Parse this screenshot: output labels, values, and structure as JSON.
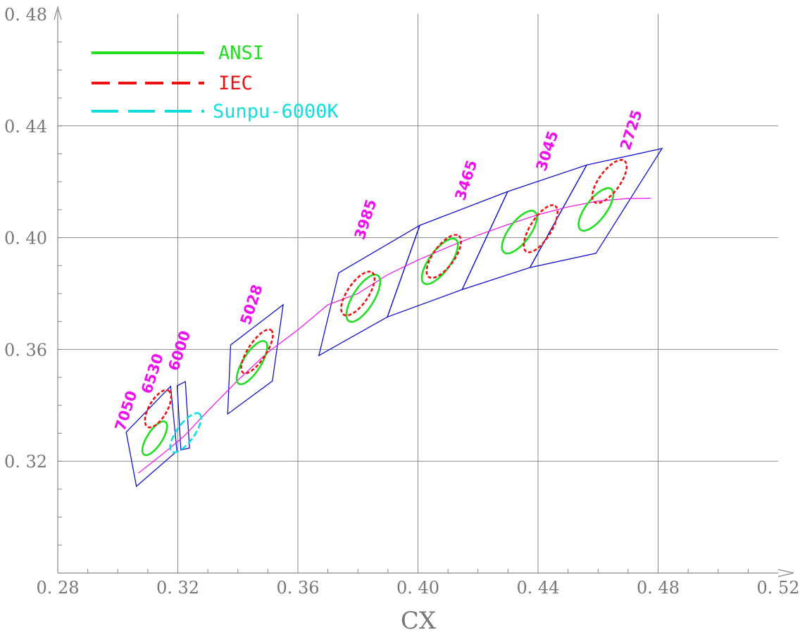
{
  "chart_data": {
    "type": "scatter",
    "title": "",
    "xlabel": "CX",
    "ylabel": "",
    "xlim": [
      0.28,
      0.52
    ],
    "ylim": [
      0.28,
      0.48
    ],
    "x_ticks": [
      0.28,
      0.32,
      0.36,
      0.4,
      0.44,
      0.48,
      0.52
    ],
    "y_ticks": [
      0.32,
      0.36,
      0.4,
      0.44,
      0.48
    ],
    "x_tick_labels": [
      "0. 28",
      "0. 32",
      "0. 36",
      "0. 40",
      "0. 44",
      "0. 48",
      "0. 52"
    ],
    "y_tick_labels": [
      "0. 32",
      "0. 36",
      "0. 40",
      "0. 44",
      "0. 48"
    ],
    "minor_step": 0.01,
    "grid": true,
    "legend_position": "top-left",
    "legend": [
      {
        "name": "ANSI",
        "color": "#22dd22",
        "style": "solid"
      },
      {
        "name": "IEC",
        "color": "#ee1111",
        "style": "dashed"
      },
      {
        "name": "Sunpu-6000K",
        "color": "#11dddd",
        "style": "dashed"
      }
    ],
    "series": [
      {
        "name": "ANSI",
        "color": "#22dd22",
        "ellipses": [
          {
            "cct": "6530",
            "cx": 0.3123,
            "cy": 0.3282,
            "a": 0.0065,
            "b": 0.0025,
            "angle": 57
          },
          {
            "cct": "5028",
            "cx": 0.3447,
            "cy": 0.3553,
            "a": 0.0083,
            "b": 0.003,
            "angle": 58
          },
          {
            "cct": "3985",
            "cx": 0.3818,
            "cy": 0.3783,
            "a": 0.009,
            "b": 0.0035,
            "angle": 58
          },
          {
            "cct": "3465",
            "cx": 0.4073,
            "cy": 0.3915,
            "a": 0.009,
            "b": 0.0035,
            "angle": 54
          },
          {
            "cct": "3045",
            "cx": 0.4338,
            "cy": 0.402,
            "a": 0.0085,
            "b": 0.0035,
            "angle": 53
          },
          {
            "cct": "2725",
            "cx": 0.4593,
            "cy": 0.4101,
            "a": 0.0085,
            "b": 0.0034,
            "angle": 53
          }
        ]
      },
      {
        "name": "IEC",
        "color": "#ee1111",
        "ellipses": [
          {
            "cct": "6530",
            "cx": 0.3134,
            "cy": 0.3388,
            "a": 0.007,
            "b": 0.003,
            "angle": 60
          },
          {
            "cct": "5028",
            "cx": 0.3464,
            "cy": 0.3593,
            "a": 0.0085,
            "b": 0.003,
            "angle": 57
          },
          {
            "cct": "3985",
            "cx": 0.38,
            "cy": 0.38,
            "a": 0.0085,
            "b": 0.0035,
            "angle": 56
          },
          {
            "cct": "3465",
            "cx": 0.4086,
            "cy": 0.3933,
            "a": 0.0085,
            "b": 0.0035,
            "angle": 54
          },
          {
            "cct": "3045",
            "cx": 0.4409,
            "cy": 0.4032,
            "a": 0.009,
            "b": 0.0035,
            "angle": 58
          },
          {
            "cct": "2725",
            "cx": 0.4638,
            "cy": 0.4201,
            "a": 0.0085,
            "b": 0.0035,
            "angle": 54
          }
        ]
      },
      {
        "name": "Sunpu-6000K",
        "color": "#11dddd",
        "ellipses": [
          {
            "cct": "6000",
            "cx": 0.3226,
            "cy": 0.3302,
            "a": 0.0078,
            "b": 0.0029,
            "angle": 54
          }
        ]
      }
    ],
    "quadrangles": [
      {
        "cct": "7050",
        "points": [
          [
            0.3028,
            0.3304
          ],
          [
            0.3176,
            0.3468
          ],
          [
            0.3197,
            0.3236
          ],
          [
            0.3062,
            0.311
          ]
        ]
      },
      {
        "cct": "6000",
        "points": [
          [
            0.3198,
            0.347
          ],
          [
            0.3225,
            0.3485
          ],
          [
            0.3239,
            0.3247
          ],
          [
            0.321,
            0.324
          ]
        ]
      },
      {
        "cct": "5028",
        "points": [
          [
            0.3376,
            0.3616
          ],
          [
            0.3551,
            0.376
          ],
          [
            0.3515,
            0.3487
          ],
          [
            0.3366,
            0.3369
          ]
        ]
      },
      {
        "cct": "3985",
        "points": [
          [
            0.3736,
            0.3874
          ],
          [
            0.4006,
            0.4044
          ],
          [
            0.3898,
            0.3716
          ],
          [
            0.367,
            0.3578
          ]
        ]
      },
      {
        "cct": "3465",
        "points": [
          [
            0.4006,
            0.4044
          ],
          [
            0.4299,
            0.4165
          ],
          [
            0.4147,
            0.3814
          ],
          [
            0.3898,
            0.3716
          ]
        ]
      },
      {
        "cct": "3045",
        "points": [
          [
            0.4299,
            0.4165
          ],
          [
            0.4562,
            0.426
          ],
          [
            0.4373,
            0.3893
          ],
          [
            0.4147,
            0.3814
          ]
        ]
      },
      {
        "cct": "2725",
        "points": [
          [
            0.4562,
            0.426
          ],
          [
            0.4813,
            0.4319
          ],
          [
            0.4593,
            0.3944
          ],
          [
            0.4373,
            0.3893
          ]
        ]
      }
    ],
    "planckian_locus": {
      "color": "#ee11ee",
      "x": [
        0.3068,
        0.315,
        0.3221,
        0.33,
        0.34,
        0.35,
        0.36,
        0.37,
        0.38,
        0.39,
        0.4,
        0.41,
        0.42,
        0.43,
        0.44,
        0.45,
        0.46,
        0.47,
        0.4776
      ],
      "y": [
        0.3157,
        0.3226,
        0.329,
        0.338,
        0.349,
        0.359,
        0.367,
        0.376,
        0.38,
        0.3868,
        0.392,
        0.3966,
        0.4009,
        0.4047,
        0.4082,
        0.411,
        0.4131,
        0.414,
        0.4141
      ]
    },
    "cct_labels": [
      {
        "text": "7050",
        "x": 0.3022,
        "y": 0.3305
      },
      {
        "text": "6530",
        "x": 0.311,
        "y": 0.3438
      },
      {
        "text": "6000",
        "x": 0.32,
        "y": 0.352
      },
      {
        "text": "5028",
        "x": 0.344,
        "y": 0.3685
      },
      {
        "text": "3985",
        "x": 0.382,
        "y": 0.399
      },
      {
        "text": "3465",
        "x": 0.4155,
        "y": 0.413
      },
      {
        "text": "3045",
        "x": 0.4425,
        "y": 0.4235
      },
      {
        "text": "2725",
        "x": 0.4705,
        "y": 0.431
      }
    ]
  },
  "colors": {
    "grid": "#888888",
    "axis": "#888888",
    "quad": "#1111cc",
    "locus": "#ee11ee",
    "cct_label": "#ee11ee"
  }
}
